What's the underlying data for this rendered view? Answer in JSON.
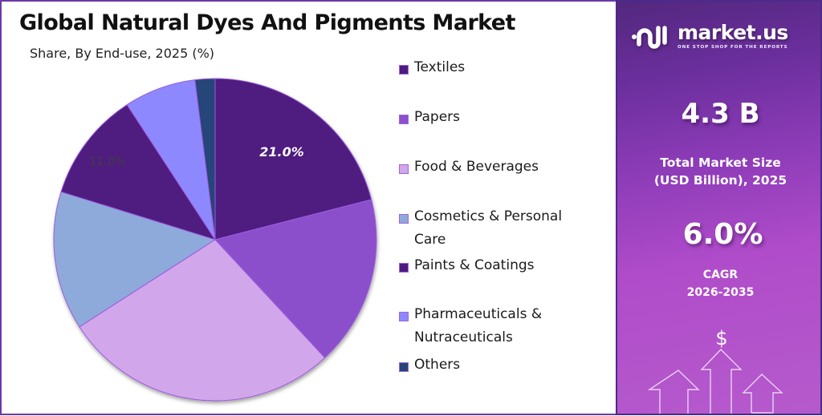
{
  "header": {
    "title": "Global Natural Dyes And Pigments Market",
    "subtitle": "Share, By End-use, 2025 (%)"
  },
  "chart_data": {
    "type": "pie",
    "title": "Global Natural Dyes And Pigments Market",
    "subtitle": "Share, By End-use, 2025 (%)",
    "categories": [
      "Textiles",
      "Papers",
      "Food & Beverages",
      "Cosmetics & Personal Care",
      "Paints & Coatings",
      "Pharmaceuticals & Nutraceuticals",
      "Others"
    ],
    "values": [
      21.0,
      17.1,
      27.8,
      13.9,
      11.0,
      7.2,
      2.0
    ],
    "colors": [
      "#4f1a80",
      "#8b50cc",
      "#d2a6ea",
      "#8eaadb",
      "#4f1a80",
      "#8e88ff",
      "#264478"
    ],
    "data_labels": [
      {
        "category": "Textiles",
        "text": "21.0%",
        "color": "#ffffff"
      },
      {
        "category": "Paints & Coatings",
        "text": "11.0%",
        "color": "#404040"
      }
    ],
    "start_angle": "12 o'clock, clockwise",
    "legend_position": "right"
  },
  "legend": {
    "items": [
      {
        "label": "Textiles",
        "color": "#4f1a80"
      },
      {
        "label": "Papers",
        "color": "#8b50cc"
      },
      {
        "label": "Food & Beverages",
        "color": "#d2a6ea"
      },
      {
        "label": "Cosmetics & Personal Care",
        "color": "#8eaadb"
      },
      {
        "label": "Paints & Coatings",
        "color": "#4f1a80"
      },
      {
        "label": "Pharmaceuticals & Nutraceuticals",
        "color": "#8e88ff"
      },
      {
        "label": "Others",
        "color": "#264478"
      }
    ]
  },
  "brand": {
    "name": "market.us",
    "tagline": "ONE STOP SHOP FOR THE REPORTS"
  },
  "stats": {
    "market_size_value": "4.3 B",
    "market_size_label_line1": "Total Market Size",
    "market_size_label_line2": "(USD Billion), 2025",
    "cagr_value": "6.0%",
    "cagr_label_line1": "CAGR",
    "cagr_label_line2": "2026-2035"
  },
  "decor": {
    "currency_symbol": "$"
  },
  "colors": {
    "frame_border": "#6a3aa8",
    "panel_gradient_top": "#53287e",
    "panel_gradient_bottom": "#b55acc"
  }
}
